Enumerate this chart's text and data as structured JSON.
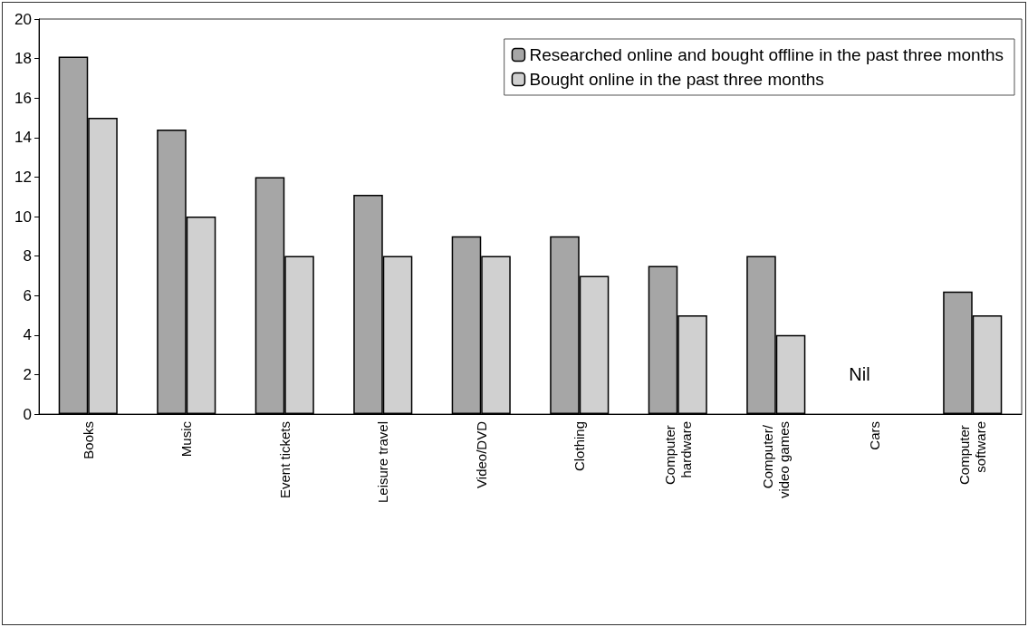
{
  "chart_data": {
    "type": "bar",
    "categories": [
      "Books",
      "Music",
      "Event tickets",
      "Leisure travel",
      "Video/DVD",
      "Clothing",
      "Computer hardware",
      "Computer/ video games",
      "Cars",
      "Computer software"
    ],
    "series": [
      {
        "name": "Researched online and bought offline in the past three months",
        "color": "#a6a6a6",
        "values": [
          18.1,
          14.4,
          12,
          11.1,
          9,
          9,
          7.5,
          8,
          null,
          6.2
        ]
      },
      {
        "name": "Bought online in the past three months",
        "color": "#d0d0d0",
        "values": [
          15,
          10,
          8,
          8,
          8,
          7,
          5,
          4,
          null,
          5
        ]
      }
    ],
    "ylim": [
      0,
      20
    ],
    "yticks": [
      0,
      2,
      4,
      6,
      8,
      10,
      12,
      14,
      16,
      18,
      20
    ],
    "annotations": [
      "Nil"
    ],
    "grid": false,
    "legend": "top right"
  }
}
